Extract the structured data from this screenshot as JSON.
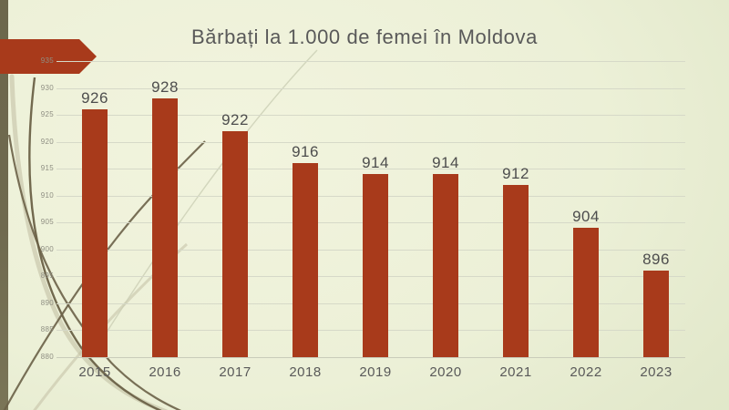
{
  "slide": {
    "title": "Bărbați la 1.000 de femei în Moldova"
  },
  "chart_data": {
    "type": "bar",
    "title": "Bărbați la 1.000 de femei în Moldova",
    "categories": [
      "2015",
      "2016",
      "2017",
      "2018",
      "2019",
      "2020",
      "2021",
      "2022",
      "2023"
    ],
    "values": [
      926,
      928,
      922,
      916,
      914,
      914,
      912,
      904,
      896
    ],
    "xlabel": "",
    "ylabel": "",
    "ylim": [
      880,
      935
    ],
    "yticks": [
      880,
      885,
      890,
      895,
      900,
      905,
      910,
      915,
      920,
      925,
      930,
      935
    ],
    "grid": true,
    "legend": false,
    "data_labels": true,
    "bar_color": "#A83A1B"
  },
  "colors": {
    "bar_red": "#A83A1B",
    "accent_arrow_red": "#A83A1B",
    "left_strip_olive": "#6F6A4F",
    "title_gray": "#595959",
    "value_label_gray": "#4D4D4D",
    "tick_label_gray": "#8F8F83",
    "gridline": "#D6D9C8",
    "background_light": "#F2F4DE",
    "background_dark": "#DBE3C4"
  }
}
